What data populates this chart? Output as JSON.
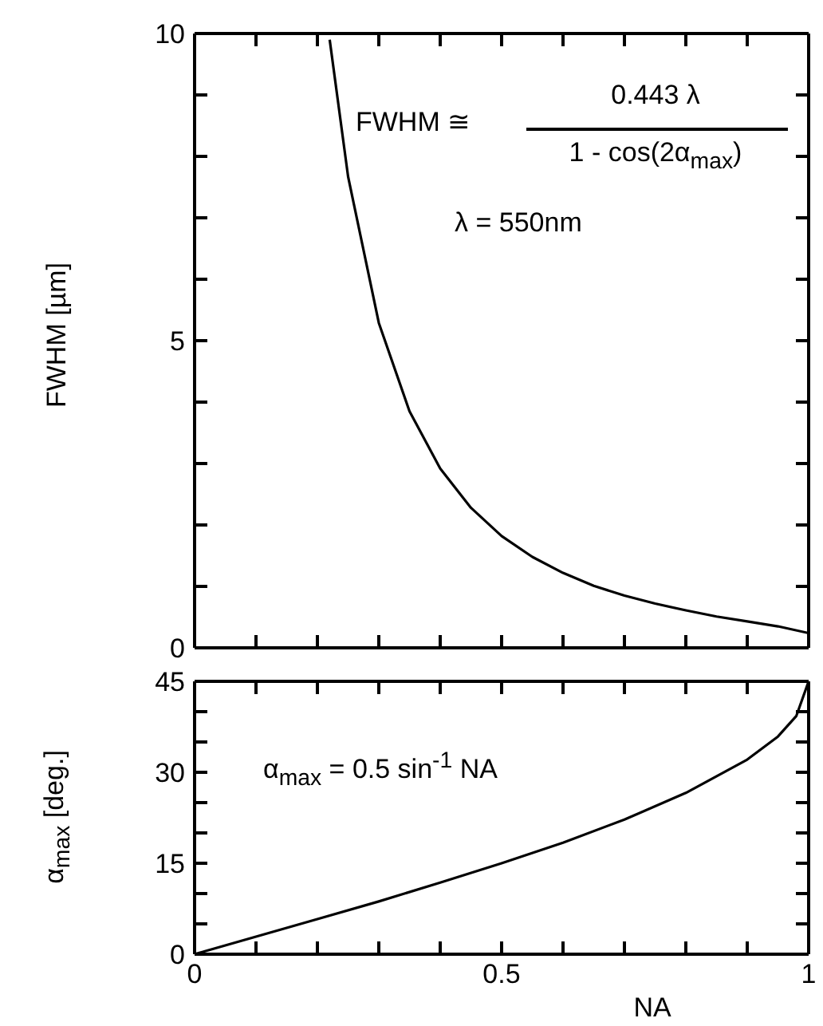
{
  "chart_data": [
    {
      "type": "line",
      "ylabel": "FWHM [µm]",
      "annotations": [
        "FWHM ≅",
        "0.443 λ",
        "1 - cos(2α$_{max}$)",
        "λ = 550nm"
      ],
      "x": [
        0.22,
        0.25,
        0.3,
        0.35,
        0.4,
        0.45,
        0.5,
        0.55,
        0.6,
        0.65,
        0.7,
        0.75,
        0.8,
        0.85,
        0.9,
        0.95,
        1
      ],
      "series": [
        {
          "color": "#000000",
          "values": [
            9.9,
            7.67,
            5.29,
            3.85,
            2.92,
            2.28,
            1.82,
            1.48,
            1.22,
            1.01,
            0.85,
            0.72,
            0.61,
            0.51,
            0.43,
            0.35,
            0.24
          ]
        }
      ],
      "xlim": [
        0,
        1
      ],
      "xticks": [
        0,
        {
          "value": 0.1,
          "label": null
        },
        {
          "value": 0.2,
          "label": null
        },
        {
          "value": 0.3,
          "label": null
        },
        {
          "value": 0.4,
          "label": null
        },
        0.5,
        {
          "value": 0.6,
          "label": null
        },
        {
          "value": 0.7,
          "label": null
        },
        {
          "value": 0.8,
          "label": null
        },
        {
          "value": 0.9,
          "label": null
        },
        1
      ],
      "ylim": [
        0,
        10
      ],
      "yticks": [
        0,
        {
          "value": 1,
          "label": null
        },
        {
          "value": 2,
          "label": null
        },
        {
          "value": 3,
          "label": null
        },
        {
          "value": 4,
          "label": null
        },
        5,
        {
          "value": 6,
          "label": null
        },
        {
          "value": 7,
          "label": null
        },
        {
          "value": 8,
          "label": null
        },
        {
          "value": 9,
          "label": null
        },
        10
      ],
      "tick_labels": "y",
      "marker": "none",
      "line_style": "solid"
    },
    {
      "type": "line",
      "xlabel": "NA",
      "ylabel": "α$_{max}$ [deg.]",
      "annotations": [
        "α$_{max}$ = 0.5 sin$^{-1}$ NA"
      ],
      "x": [
        0,
        0.1,
        0.2,
        0.3,
        0.4,
        0.5,
        0.6,
        0.7,
        0.8,
        0.9,
        0.95,
        0.98,
        1
      ],
      "series": [
        {
          "color": "#000000",
          "values": [
            0,
            2.9,
            5.8,
            8.7,
            11.8,
            15,
            18.4,
            22.2,
            26.6,
            32.1,
            35.9,
            39.3,
            45
          ]
        }
      ],
      "xlim": [
        0,
        1
      ],
      "xticks": [
        0,
        {
          "value": 0.1,
          "label": null
        },
        {
          "value": 0.2,
          "label": null
        },
        {
          "value": 0.3,
          "label": null
        },
        {
          "value": 0.4,
          "label": null
        },
        0.5,
        {
          "value": 0.6,
          "label": null
        },
        {
          "value": 0.7,
          "label": null
        },
        {
          "value": 0.8,
          "label": null
        },
        {
          "value": 0.9,
          "label": null
        },
        1
      ],
      "ylim": [
        0,
        45
      ],
      "yticks": [
        0,
        {
          "value": 5,
          "label": null
        },
        {
          "value": 10,
          "label": null
        },
        15,
        {
          "value": 20,
          "label": null
        },
        {
          "value": 25,
          "label": null
        },
        30,
        {
          "value": 35,
          "label": null
        },
        {
          "value": 40,
          "label": null
        },
        45
      ],
      "marker": "none",
      "line_style": "solid"
    }
  ]
}
